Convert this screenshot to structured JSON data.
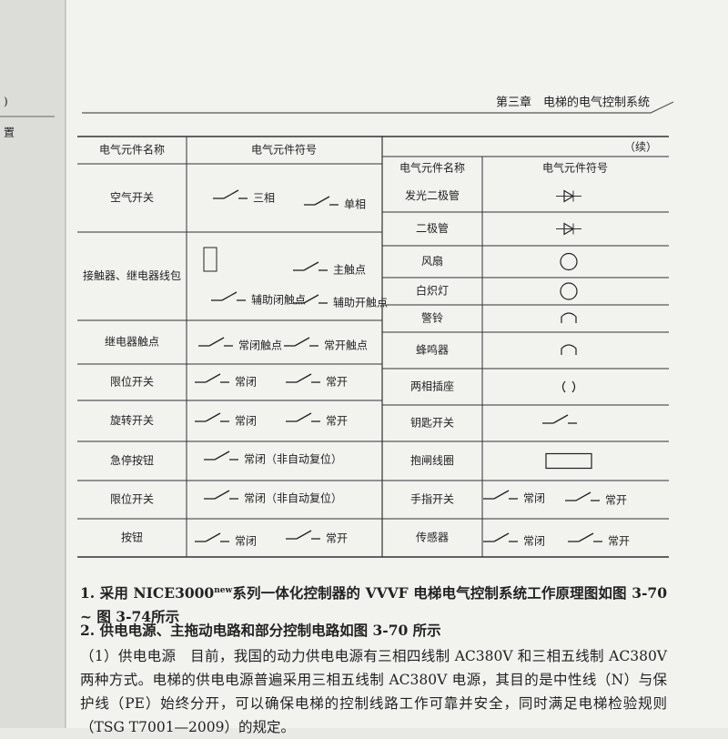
{
  "left_page": {
    "texts": [
      ")",
      "置"
    ]
  },
  "header": {
    "chapter": "第三章　电梯的电气控制系统"
  },
  "table": {
    "continued": "（续）",
    "left_headers": [
      "电气元件名称",
      "电气元件符号"
    ],
    "right_headers": [
      "电气元件名称",
      "电气元件符号"
    ],
    "left_rows": [
      {
        "name": "空气开关",
        "labels": [
          "三相",
          "单相"
        ]
      },
      {
        "name": "接触器、继电器线包",
        "labels": [
          "主触点",
          "辅助闭触点",
          "辅助开触点"
        ]
      },
      {
        "name": "继电器触点",
        "labels": [
          "常闭触点",
          "常开触点"
        ]
      },
      {
        "name": "限位开关",
        "labels": [
          "常闭",
          "常开"
        ]
      },
      {
        "name": "旋转开关",
        "labels": [
          "常闭",
          "常开"
        ]
      },
      {
        "name": "急停按钮",
        "labels": [
          "常闭（非自动复位）"
        ]
      },
      {
        "name": "限位开关",
        "labels": [
          "常闭（非自动复位）"
        ]
      },
      {
        "name": "按钮",
        "labels": [
          "常闭",
          "常开"
        ]
      }
    ],
    "right_rows": [
      {
        "name": "发光二极管"
      },
      {
        "name": "二极管"
      },
      {
        "name": "风扇"
      },
      {
        "name": "白炽灯"
      },
      {
        "name": "警铃"
      },
      {
        "name": "蜂鸣器"
      },
      {
        "name": "两相插座"
      },
      {
        "name": "钥匙开关"
      },
      {
        "name": "抱闸线圈"
      },
      {
        "name": "手指开关",
        "labels": [
          "常闭",
          "常开"
        ]
      },
      {
        "name": "传感器",
        "labels": [
          "常闭",
          "常开"
        ]
      }
    ]
  },
  "body": {
    "p1": [
      "1. 采用 NICE3000",
      "new",
      "系列一体化控制器的 VVVF 电梯电气控制系统工作原理图如图 3-70 ~ 图 3-74所示"
    ],
    "p2": "2. 供电电源、主拖动电路和部分控制电路如图 3-70 所示",
    "p3": "（1）供电电源　目前，我国的动力供电电源有三相四线制 AC380V 和三相五线制 AC380V 两种方式。电梯的供电电源普遍采用三相五线制 AC380V 电源，其目的是中性线（N）与保护线（PE）始终分开，可以确保电梯的控制线路工作可靠并安全，同时满足电梯检验规则（TSG T7001—2009）的规定。"
  }
}
